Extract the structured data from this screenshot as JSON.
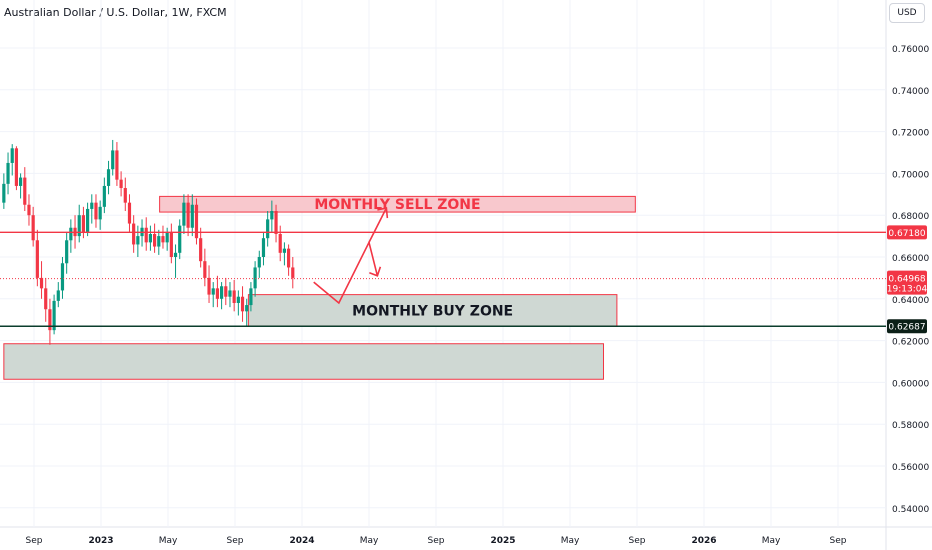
{
  "header": {
    "symbol_title": "Australian Dollar / U.S. Dollar, 1W, FXCM",
    "currency": "USD"
  },
  "chart_data": {
    "type": "candlestick",
    "title": "Australian Dollar / U.S. Dollar, 1W, FXCM",
    "ylim": [
      0.53,
      0.775
    ],
    "y_ticks": [
      "0.76000",
      "0.74000",
      "0.72000",
      "0.70000",
      "0.68000",
      "0.66000",
      "0.64000",
      "0.62000",
      "0.60000",
      "0.58000",
      "0.56000",
      "0.54000"
    ],
    "y_tick_values": [
      0.76,
      0.74,
      0.72,
      0.7,
      0.68,
      0.66,
      0.64,
      0.62,
      0.6,
      0.58,
      0.56,
      0.54
    ],
    "x_ticks": [
      "Sep",
      "2023",
      "May",
      "Sep",
      "2024",
      "May",
      "Sep",
      "2025",
      "May",
      "Sep",
      "2026",
      "May",
      "Sep"
    ],
    "x_tick_months": [
      20,
      24,
      28,
      32,
      36,
      40,
      44,
      48,
      52,
      56,
      60,
      64,
      68
    ],
    "x_range_months": [
      18.2,
      71.3
    ],
    "candles": [
      [
        18.2,
        0.686,
        0.7,
        0.683,
        0.695
      ],
      [
        18.45,
        0.695,
        0.71,
        0.69,
        0.705
      ],
      [
        18.7,
        0.705,
        0.714,
        0.699,
        0.712
      ],
      [
        18.95,
        0.712,
        0.713,
        0.692,
        0.694
      ],
      [
        19.2,
        0.694,
        0.7,
        0.688,
        0.698
      ],
      [
        19.45,
        0.698,
        0.703,
        0.682,
        0.685
      ],
      [
        19.7,
        0.685,
        0.69,
        0.675,
        0.68
      ],
      [
        19.95,
        0.68,
        0.684,
        0.665,
        0.668
      ],
      [
        20.2,
        0.668,
        0.673,
        0.646,
        0.65
      ],
      [
        20.45,
        0.65,
        0.658,
        0.64,
        0.645
      ],
      [
        20.7,
        0.645,
        0.65,
        0.629,
        0.635
      ],
      [
        20.95,
        0.635,
        0.64,
        0.618,
        0.625
      ],
      [
        21.2,
        0.625,
        0.642,
        0.623,
        0.639
      ],
      [
        21.45,
        0.639,
        0.648,
        0.636,
        0.644
      ],
      [
        21.7,
        0.644,
        0.66,
        0.64,
        0.657
      ],
      [
        21.95,
        0.657,
        0.672,
        0.652,
        0.668
      ],
      [
        22.2,
        0.668,
        0.678,
        0.662,
        0.674
      ],
      [
        22.45,
        0.674,
        0.68,
        0.664,
        0.67
      ],
      [
        22.7,
        0.67,
        0.685,
        0.667,
        0.68
      ],
      [
        22.95,
        0.68,
        0.684,
        0.669,
        0.672
      ],
      [
        23.2,
        0.672,
        0.686,
        0.67,
        0.683
      ],
      [
        23.45,
        0.683,
        0.69,
        0.676,
        0.686
      ],
      [
        23.7,
        0.686,
        0.69,
        0.674,
        0.678
      ],
      [
        23.95,
        0.678,
        0.687,
        0.673,
        0.684
      ],
      [
        24.2,
        0.684,
        0.698,
        0.681,
        0.694
      ],
      [
        24.45,
        0.694,
        0.706,
        0.69,
        0.702
      ],
      [
        24.7,
        0.702,
        0.716,
        0.699,
        0.711
      ],
      [
        24.95,
        0.711,
        0.715,
        0.694,
        0.697
      ],
      [
        25.2,
        0.697,
        0.701,
        0.689,
        0.693
      ],
      [
        25.45,
        0.693,
        0.698,
        0.682,
        0.686
      ],
      [
        25.7,
        0.686,
        0.69,
        0.672,
        0.676
      ],
      [
        25.95,
        0.676,
        0.68,
        0.662,
        0.666
      ],
      [
        26.2,
        0.666,
        0.675,
        0.66,
        0.67
      ],
      [
        26.45,
        0.67,
        0.678,
        0.665,
        0.674
      ],
      [
        26.7,
        0.674,
        0.679,
        0.663,
        0.667
      ],
      [
        26.95,
        0.667,
        0.675,
        0.663,
        0.671
      ],
      [
        27.2,
        0.671,
        0.676,
        0.662,
        0.665
      ],
      [
        27.45,
        0.665,
        0.673,
        0.661,
        0.67
      ],
      [
        27.7,
        0.67,
        0.675,
        0.664,
        0.667
      ],
      [
        27.95,
        0.667,
        0.674,
        0.663,
        0.672
      ],
      [
        28.2,
        0.672,
        0.676,
        0.657,
        0.66
      ],
      [
        28.45,
        0.66,
        0.666,
        0.65,
        0.662
      ],
      [
        28.7,
        0.662,
        0.678,
        0.659,
        0.675
      ],
      [
        28.95,
        0.675,
        0.69,
        0.671,
        0.686
      ],
      [
        29.2,
        0.686,
        0.69,
        0.67,
        0.674
      ],
      [
        29.45,
        0.674,
        0.69,
        0.67,
        0.685
      ],
      [
        29.7,
        0.685,
        0.688,
        0.666,
        0.669
      ],
      [
        29.95,
        0.669,
        0.674,
        0.655,
        0.658
      ],
      [
        30.2,
        0.658,
        0.664,
        0.646,
        0.65
      ],
      [
        30.45,
        0.65,
        0.656,
        0.638,
        0.642
      ],
      [
        30.7,
        0.642,
        0.648,
        0.636,
        0.645
      ],
      [
        30.95,
        0.645,
        0.651,
        0.636,
        0.64
      ],
      [
        31.2,
        0.64,
        0.648,
        0.635,
        0.646
      ],
      [
        31.45,
        0.646,
        0.65,
        0.637,
        0.641
      ],
      [
        31.7,
        0.641,
        0.648,
        0.636,
        0.644
      ],
      [
        31.95,
        0.644,
        0.649,
        0.634,
        0.638
      ],
      [
        32.2,
        0.638,
        0.644,
        0.632,
        0.641
      ],
      [
        32.45,
        0.641,
        0.646,
        0.629,
        0.634
      ],
      [
        32.7,
        0.634,
        0.64,
        0.627,
        0.637
      ],
      [
        32.95,
        0.637,
        0.648,
        0.634,
        0.645
      ],
      [
        33.2,
        0.645,
        0.658,
        0.641,
        0.655
      ],
      [
        33.45,
        0.655,
        0.663,
        0.65,
        0.66
      ],
      [
        33.7,
        0.66,
        0.672,
        0.656,
        0.669
      ],
      [
        33.95,
        0.669,
        0.682,
        0.665,
        0.678
      ],
      [
        34.2,
        0.678,
        0.687,
        0.672,
        0.682
      ],
      [
        34.45,
        0.682,
        0.685,
        0.667,
        0.671
      ],
      [
        34.7,
        0.671,
        0.675,
        0.658,
        0.662
      ],
      [
        34.95,
        0.662,
        0.667,
        0.656,
        0.664
      ],
      [
        35.2,
        0.664,
        0.666,
        0.651,
        0.655
      ],
      [
        35.45,
        0.655,
        0.66,
        0.645,
        0.65
      ]
    ],
    "horizontal_lines": [
      {
        "value": 0.6718,
        "label": "0.67180",
        "color": "#f23645"
      },
      {
        "value": 0.62687,
        "label": "0.62687",
        "color": "#0b3d2c"
      }
    ],
    "current_price": {
      "value": 0.64968,
      "label": "0.64968",
      "countdown": "19:13:04",
      "color": "#f23645"
    },
    "zones": [
      {
        "name": "MONTHLY SELL ZONE",
        "label": "MONTHLY SELL ZONE",
        "x0": 27.5,
        "x1": 55.9,
        "y0": 0.6815,
        "y1": 0.689,
        "fill": "#f8c8cd",
        "stroke": "#f23645",
        "label_color": "#f23645"
      },
      {
        "name": "MONTHLY BUY ZONE",
        "label": "MONTHLY BUY ZONE",
        "x0": 32.8,
        "x1": 54.8,
        "y0": 0.627,
        "y1": 0.642,
        "fill": "#cfd8d3",
        "stroke": "#f23645",
        "label_color": "#131722"
      },
      {
        "name": "lower zone",
        "label": "",
        "x0": 18.2,
        "x1": 54.0,
        "y0": 0.6015,
        "y1": 0.6185,
        "fill": "#cfd8d3",
        "stroke": "#f23645",
        "label_color": "#131722"
      }
    ],
    "projection_path": [
      [
        36.7,
        0.648
      ],
      [
        38.2,
        0.638
      ],
      [
        40.0,
        0.667
      ],
      [
        40.5,
        0.651
      ]
    ],
    "projection_arrow": [
      [
        40.0,
        0.667
      ],
      [
        40.5,
        0.682
      ]
    ],
    "colors": {
      "up": "#089981",
      "down": "#f23645",
      "grid": "#f0f3fa",
      "axis_text": "#131722"
    }
  }
}
